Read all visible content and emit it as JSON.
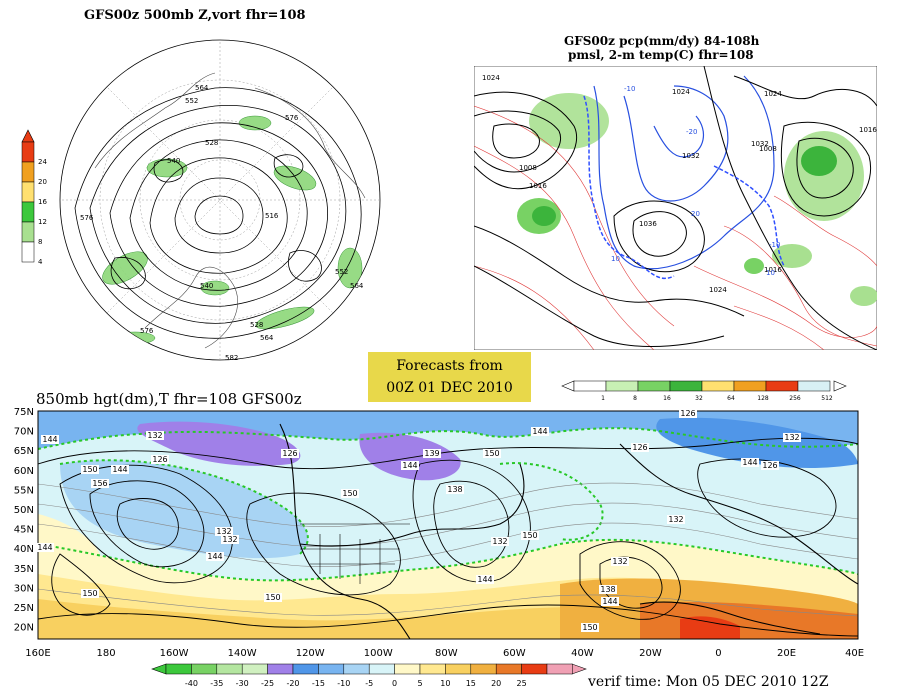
{
  "panels": {
    "nh500": {
      "title": "GFS00z   500mb  Z,vort     fhr=108"
    },
    "precip": {
      "title_line1": "GFS00z pcp(mm/dy) 84-108h",
      "title_line2": "pmsl, 2-m temp(C)   fhr=108"
    },
    "hgt850": {
      "title": "850mb  hgt(dm),T   fhr=108  GFS00z"
    }
  },
  "banner": {
    "line1": "Forecasts from",
    "line2": "00Z  01  DEC  2010"
  },
  "verif": {
    "text": "verif time: Mon 05 DEC 2010 12Z"
  },
  "colorbars": {
    "vort": {
      "labels": [
        "4",
        "8",
        "12",
        "16",
        "20",
        "24"
      ],
      "colors": [
        "#ffffff",
        "#a8e090",
        "#3cc83c",
        "#ffe070",
        "#f0a020",
        "#e83c14"
      ]
    },
    "precip": {
      "labels": [
        "1",
        "8",
        "16",
        "32",
        "64",
        "128",
        "256",
        "512"
      ],
      "colors": [
        "#ffffff",
        "#c8f0b4",
        "#78d264",
        "#3cb43c",
        "#ffe070",
        "#f0a020",
        "#e83c14",
        "#d8f0f4"
      ]
    },
    "temp": {
      "labels": [
        "-40",
        "-35",
        "-30",
        "-25",
        "-20",
        "-15",
        "-10",
        "-5",
        "0",
        "5",
        "10",
        "15",
        "20",
        "25"
      ],
      "colors": [
        "#3cc83c",
        "#78d264",
        "#b4e6a0",
        "#d0f0c0",
        "#a080e8",
        "#5096e8",
        "#78b4f0",
        "#a8d4f4",
        "#d8f4f8",
        "#fff8c8",
        "#ffe890",
        "#f8d060",
        "#f0b040",
        "#e87828",
        "#e83c14",
        "#f0a0b4"
      ]
    }
  },
  "map850": {
    "lat_labels": [
      "75N",
      "70N",
      "65N",
      "60N",
      "55N",
      "50N",
      "45N",
      "40N",
      "35N",
      "30N",
      "25N",
      "20N"
    ],
    "lon_labels": [
      "160E",
      "180",
      "160W",
      "140W",
      "120W",
      "100W",
      "80W",
      "60W",
      "40W",
      "20W",
      "0",
      "20E",
      "40E"
    ],
    "contour_labels": [
      "144",
      "132",
      "126",
      "150",
      "156",
      "132",
      "144",
      "126",
      "150",
      "144",
      "139",
      "138",
      "150",
      "144",
      "132",
      "150",
      "126",
      "132",
      "126",
      "132",
      "126",
      "144",
      "150",
      "144",
      "138",
      "144",
      "150",
      "132",
      "132",
      "150",
      "144",
      "144"
    ]
  },
  "nh_labels": [
    "552",
    "564",
    "576",
    "528",
    "540",
    "516",
    "576",
    "564",
    "552",
    "540",
    "582",
    "528",
    "564",
    "576"
  ],
  "precip_labels": [
    "1024",
    "1008",
    "1016",
    "-10",
    "-20",
    "1032",
    "1036",
    "1024",
    "1016",
    "1032",
    "1016",
    "1024",
    "1008",
    "10",
    "20",
    "-10",
    "1008",
    "1024",
    "10"
  ]
}
